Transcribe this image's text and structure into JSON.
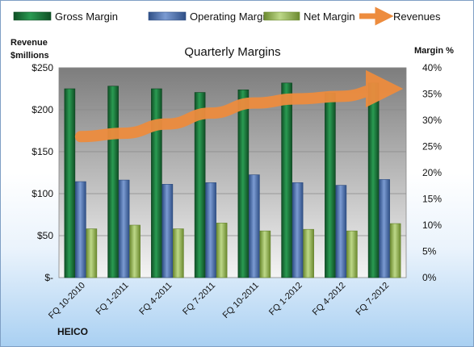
{
  "chart_data": {
    "type": "bar",
    "title": "Quarterly Margins",
    "company": "HEICO",
    "left_axis_label_line1": "Revenue",
    "left_axis_label_line2": "$millions",
    "right_axis_label": "Margin %",
    "left_ylim": [
      0,
      250
    ],
    "left_ticks": [
      0,
      50,
      100,
      150,
      200,
      250
    ],
    "left_tick_labels": [
      "$-",
      "$50",
      "$100",
      "$150",
      "$200",
      "$250"
    ],
    "right_ylim": [
      0,
      40
    ],
    "right_ticks": [
      0,
      5,
      10,
      15,
      20,
      25,
      30,
      35,
      40
    ],
    "right_tick_labels": [
      "0%",
      "5%",
      "10%",
      "15%",
      "20%",
      "25%",
      "30%",
      "35%",
      "40%"
    ],
    "grid": true,
    "legend_position": "top",
    "categories": [
      "FQ 10-2010",
      "FQ 1-2011",
      "FQ 4-2011",
      "FQ 7-2011",
      "FQ 10-2011",
      "FQ 1-2012",
      "FQ 4-2012",
      "FQ 7-2012"
    ],
    "series": [
      {
        "name": "Gross Margin",
        "axis": "right",
        "kind": "bar",
        "color": "#1f7a3c",
        "values": [
          36.0,
          36.5,
          36.0,
          35.3,
          35.8,
          37.1,
          35.2,
          37.1
        ]
      },
      {
        "name": "Operating Margin",
        "axis": "right",
        "kind": "bar",
        "color": "#4f73b3",
        "values": [
          18.3,
          18.6,
          17.8,
          18.1,
          19.6,
          18.1,
          17.6,
          18.7
        ]
      },
      {
        "name": "Net Margin",
        "axis": "right",
        "kind": "bar",
        "color": "#9bbb59",
        "values": [
          9.3,
          10.0,
          9.3,
          10.4,
          8.9,
          9.2,
          8.9,
          10.3
        ]
      },
      {
        "name": "Revenues",
        "axis": "left",
        "kind": "line",
        "color": "#ed8c3e",
        "values": [
          168,
          172,
          183,
          196,
          208,
          213,
          216,
          225
        ]
      }
    ]
  }
}
